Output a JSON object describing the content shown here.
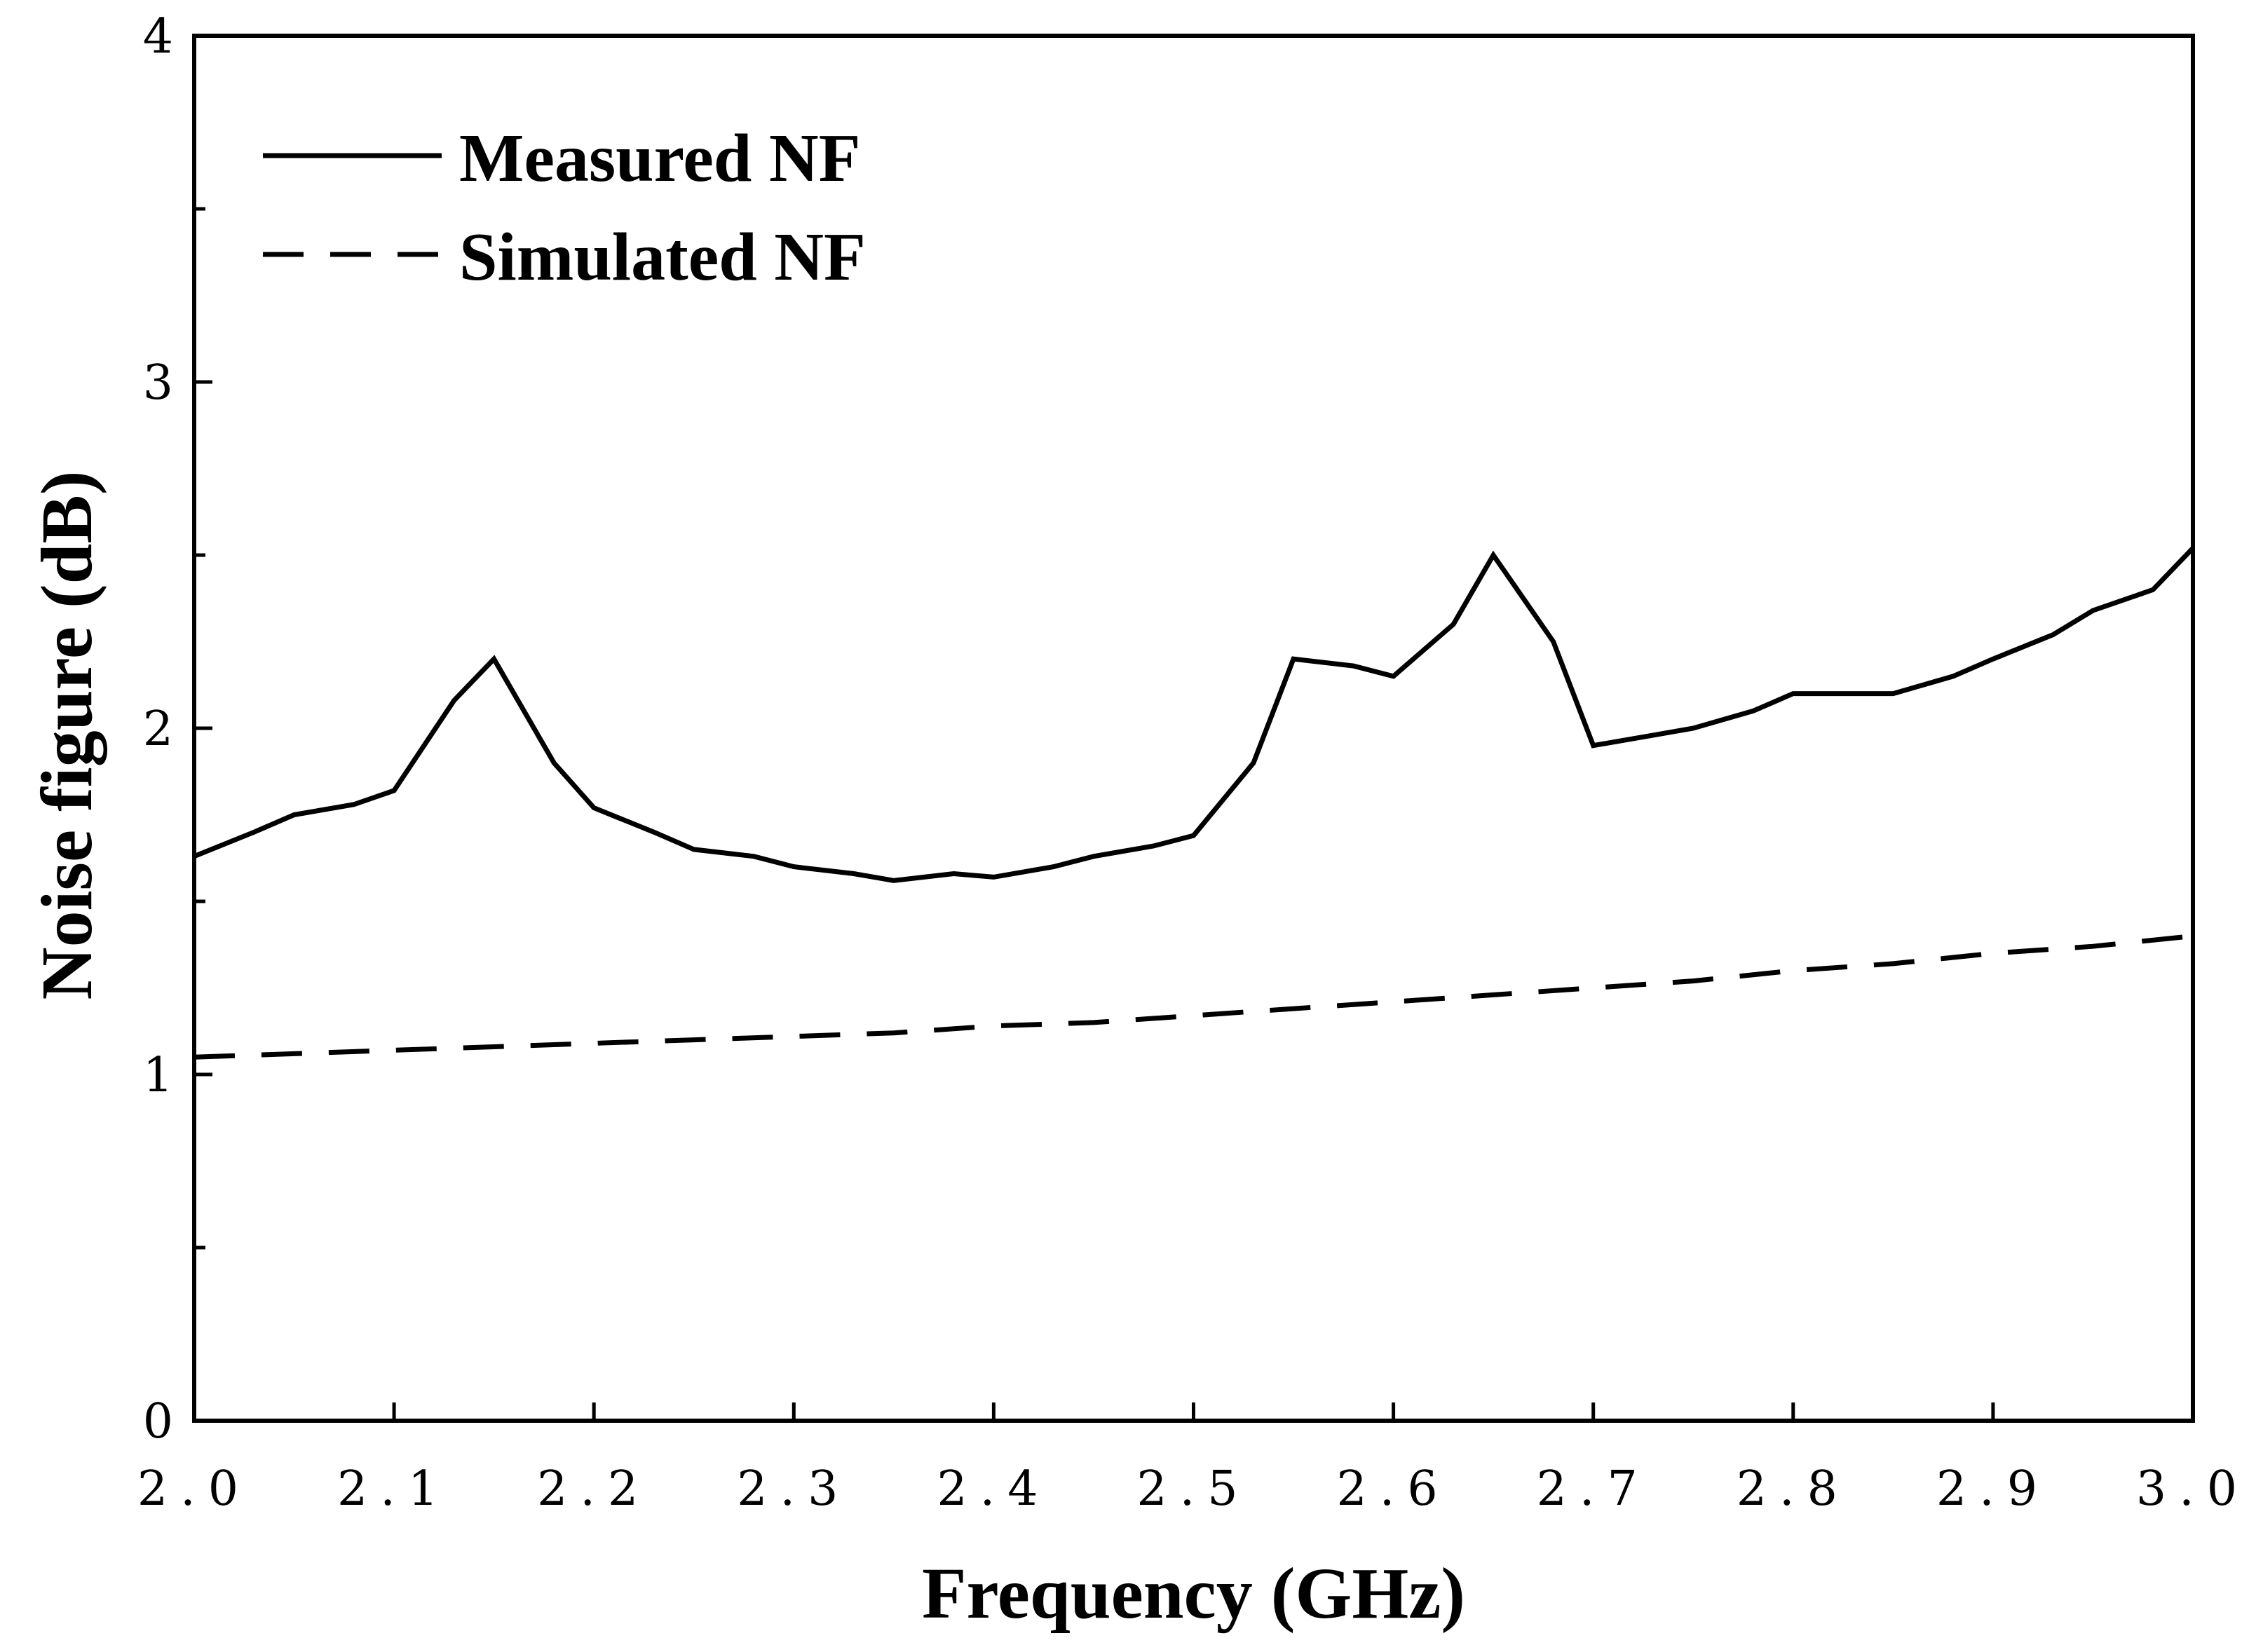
{
  "chart_data": {
    "type": "line",
    "title": "",
    "xlabel": "Frequency (GHz)",
    "ylabel": "Noise figure (dB)",
    "xlim": [
      2.0,
      3.0
    ],
    "ylim": [
      0,
      4
    ],
    "xticks": [
      2.0,
      2.1,
      2.2,
      2.3,
      2.4,
      2.5,
      2.6,
      2.7,
      2.8,
      2.9,
      3.0
    ],
    "xtick_labels": [
      "2.0",
      "2.1",
      "2.2",
      "2.3",
      "2.4",
      "2.5",
      "2.6",
      "2.7",
      "2.8",
      "2.9",
      "3.0"
    ],
    "yticks": [
      0,
      1,
      2,
      3,
      4
    ],
    "ytick_labels": [
      "0",
      "1",
      "2",
      "3",
      "4"
    ],
    "yminor_ticks": [
      0.5,
      1.5,
      2.5,
      3.5
    ],
    "grid": false,
    "legend": "top-left",
    "series": [
      {
        "name": "Measured NF",
        "style": "solid",
        "color": "#000000",
        "x": [
          2.0,
          2.03,
          2.05,
          2.08,
          2.1,
          2.13,
          2.15,
          2.18,
          2.2,
          2.23,
          2.25,
          2.28,
          2.3,
          2.33,
          2.35,
          2.38,
          2.4,
          2.43,
          2.45,
          2.48,
          2.5,
          2.53,
          2.55,
          2.58,
          2.6,
          2.63,
          2.65,
          2.68,
          2.7,
          2.73,
          2.75,
          2.78,
          2.8,
          2.83,
          2.85,
          2.88,
          2.9,
          2.93,
          2.95,
          2.98,
          3.0
        ],
        "y": [
          1.63,
          1.7,
          1.75,
          1.78,
          1.82,
          2.08,
          2.2,
          1.9,
          1.77,
          1.7,
          1.65,
          1.63,
          1.6,
          1.58,
          1.56,
          1.58,
          1.57,
          1.6,
          1.63,
          1.66,
          1.69,
          1.9,
          2.2,
          2.18,
          2.15,
          2.3,
          2.5,
          2.25,
          1.95,
          1.98,
          2.0,
          2.05,
          2.1,
          2.1,
          2.1,
          2.15,
          2.2,
          2.27,
          2.34,
          2.4,
          2.52
        ]
      },
      {
        "name": "Simulated NF",
        "style": "dashed",
        "color": "#000000",
        "x": [
          2.0,
          2.05,
          2.1,
          2.15,
          2.2,
          2.25,
          2.3,
          2.35,
          2.4,
          2.45,
          2.5,
          2.55,
          2.6,
          2.65,
          2.7,
          2.75,
          2.8,
          2.85,
          2.9,
          2.95,
          3.0
        ],
        "y": [
          1.05,
          1.06,
          1.07,
          1.08,
          1.09,
          1.1,
          1.11,
          1.12,
          1.14,
          1.15,
          1.17,
          1.19,
          1.21,
          1.23,
          1.25,
          1.27,
          1.3,
          1.32,
          1.35,
          1.37,
          1.4
        ]
      }
    ]
  }
}
